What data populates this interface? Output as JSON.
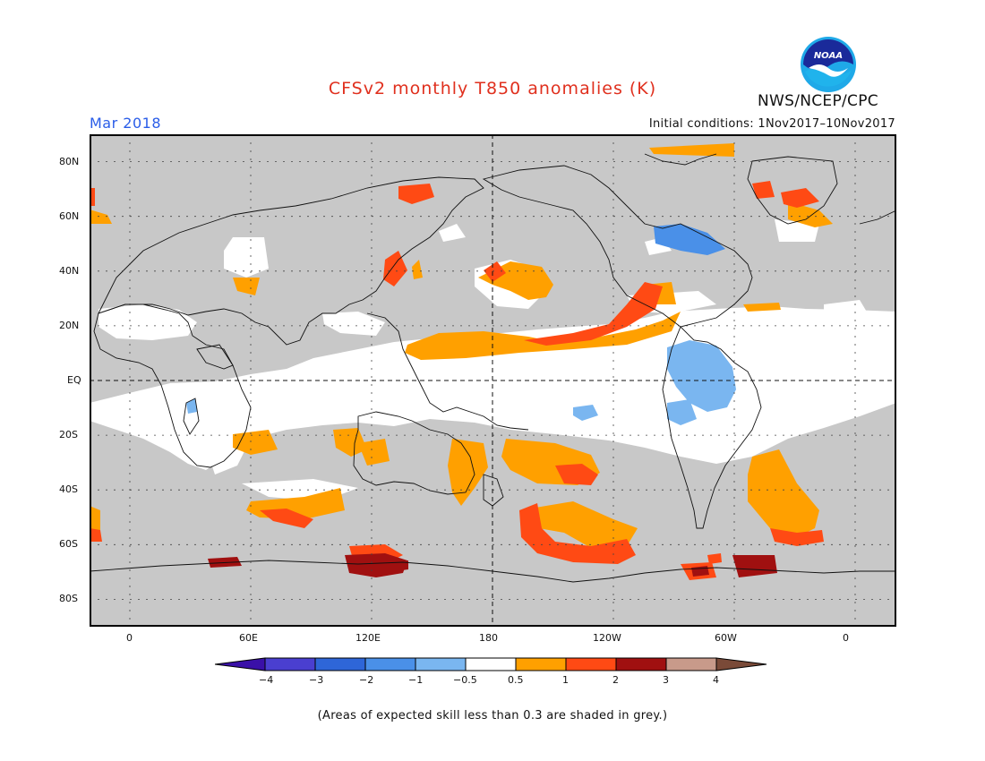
{
  "title": "CFSv2 monthly T850 anomalies (K)",
  "valid_month": "Mar 2018",
  "initial_conditions": "Initial conditions: 1Nov2017–10Nov2017",
  "organization": "NWS/NCEP/CPC",
  "logo": {
    "text": "NOAA",
    "icon": "noaa-logo-icon"
  },
  "map": {
    "projection": "equirectangular",
    "lon_range": [
      -20,
      380
    ],
    "lat_range": [
      -90,
      90
    ],
    "grey_meaning": "low skill",
    "lat_labels": [
      "80N",
      "60N",
      "40N",
      "20N",
      "EQ",
      "20S",
      "40S",
      "60S",
      "80S"
    ],
    "lon_labels": [
      "0",
      "60E",
      "120E",
      "180",
      "120W",
      "60W",
      "0"
    ]
  },
  "colorbar": {
    "ticks": [
      "−4",
      "−3",
      "−2",
      "−1",
      "−0.5",
      "0.5",
      "1",
      "2",
      "3",
      "4"
    ],
    "colors": [
      "#3a10a8",
      "#4a3fd0",
      "#2e66d8",
      "#4a90e8",
      "#7ab6f0",
      "#ffffff",
      "#ffa000",
      "#ff4a14",
      "#a01010",
      "#c89a8a",
      "#7a4a38"
    ]
  },
  "note": "(Areas of expected skill less than 0.3 are shaded in grey.)"
}
